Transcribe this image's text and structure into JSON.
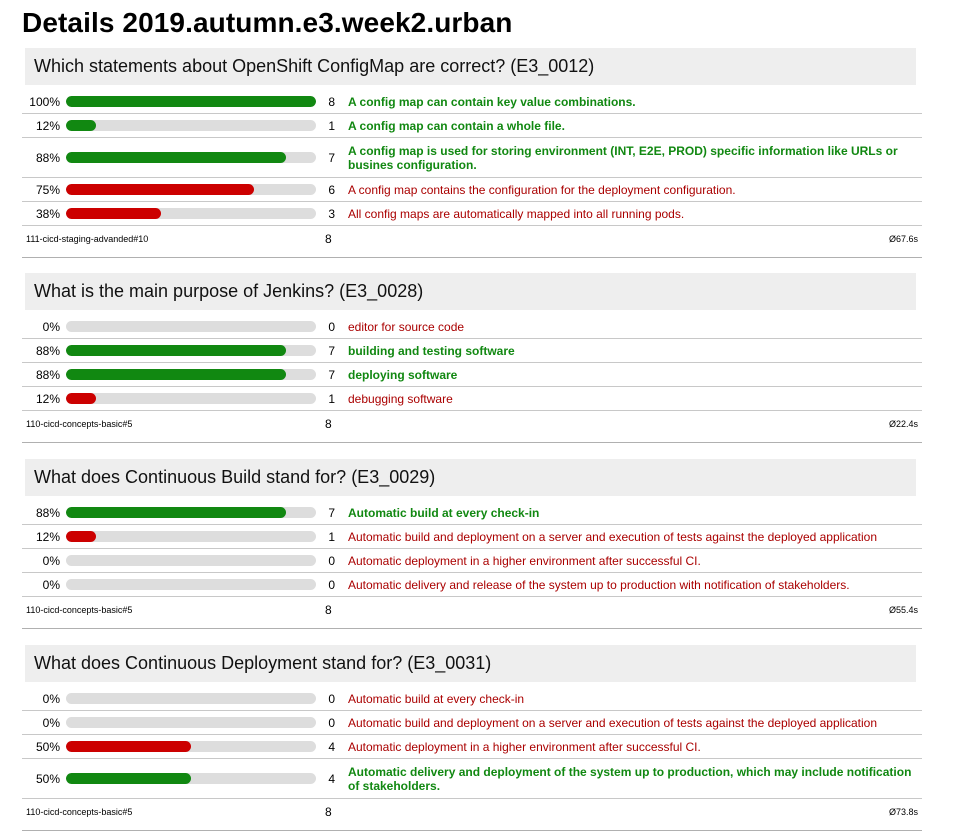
{
  "page": {
    "title": "Details 2019.autumn.e3.week2.urban"
  },
  "colors": {
    "correct": "#118811",
    "wrong": "#cc0000",
    "track": "#dddddd",
    "header_bg": "#eeeeee"
  },
  "questions": [
    {
      "title": "Which statements about OpenShift ConfigMap are correct? (E3_0012)",
      "answers": [
        {
          "percent": "100%",
          "fraction": 1.0,
          "count": "8",
          "text": "A config map can contain key value combinations.",
          "correct": true
        },
        {
          "percent": "12%",
          "fraction": 0.12,
          "count": "1",
          "text": "A config map can contain a whole file.",
          "correct": true
        },
        {
          "percent": "88%",
          "fraction": 0.88,
          "count": "7",
          "text": "A config map is used for storing environment (INT, E2E, PROD) specific information like URLs or busines configuration.",
          "correct": true
        },
        {
          "percent": "75%",
          "fraction": 0.75,
          "count": "6",
          "text": "A config map contains the configuration for the deployment configuration.",
          "correct": false
        },
        {
          "percent": "38%",
          "fraction": 0.38,
          "count": "3",
          "text": "All config maps are automatically mapped into all running pods.",
          "correct": false
        }
      ],
      "exercise": "111-cicd-staging-advanded#10",
      "total": "8",
      "avg": "Ø67.6s"
    },
    {
      "title": "What is the main purpose of Jenkins? (E3_0028)",
      "answers": [
        {
          "percent": "0%",
          "fraction": 0.0,
          "count": "0",
          "text": "editor for source code",
          "correct": false
        },
        {
          "percent": "88%",
          "fraction": 0.88,
          "count": "7",
          "text": "building and testing software",
          "correct": true
        },
        {
          "percent": "88%",
          "fraction": 0.88,
          "count": "7",
          "text": "deploying software",
          "correct": true
        },
        {
          "percent": "12%",
          "fraction": 0.12,
          "count": "1",
          "text": "debugging software",
          "correct": false
        }
      ],
      "exercise": "110-cicd-concepts-basic#5",
      "total": "8",
      "avg": "Ø22.4s"
    },
    {
      "title": "What does Continuous Build stand for? (E3_0029)",
      "answers": [
        {
          "percent": "88%",
          "fraction": 0.88,
          "count": "7",
          "text": "Automatic build at every check-in",
          "correct": true
        },
        {
          "percent": "12%",
          "fraction": 0.12,
          "count": "1",
          "text": "Automatic build and deployment on a server and execution of tests against the deployed application",
          "correct": false
        },
        {
          "percent": "0%",
          "fraction": 0.0,
          "count": "0",
          "text": "Automatic deployment in a higher environment after successful CI.",
          "correct": false
        },
        {
          "percent": "0%",
          "fraction": 0.0,
          "count": "0",
          "text": "Automatic delivery and release of the system up to production with notification of stakeholders.",
          "correct": false
        }
      ],
      "exercise": "110-cicd-concepts-basic#5",
      "total": "8",
      "avg": "Ø55.4s"
    },
    {
      "title": "What does Continuous Deployment stand for? (E3_0031)",
      "answers": [
        {
          "percent": "0%",
          "fraction": 0.0,
          "count": "0",
          "text": "Automatic build at every check-in",
          "correct": false
        },
        {
          "percent": "0%",
          "fraction": 0.0,
          "count": "0",
          "text": "Automatic build and deployment on a server and execution of tests against the deployed application",
          "correct": false
        },
        {
          "percent": "50%",
          "fraction": 0.5,
          "count": "4",
          "text": "Automatic deployment in a higher environment after successful CI.",
          "correct": false
        },
        {
          "percent": "50%",
          "fraction": 0.5,
          "count": "4",
          "text": "Automatic delivery and deployment of the system up to production, which may include notification of stakeholders.",
          "correct": true
        }
      ],
      "exercise": "110-cicd-concepts-basic#5",
      "total": "8",
      "avg": "Ø73.8s"
    }
  ]
}
